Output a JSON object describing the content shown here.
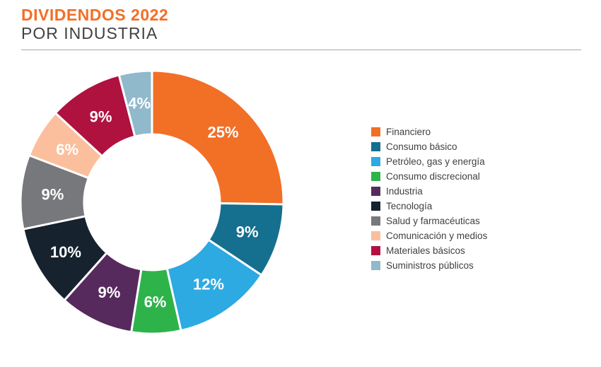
{
  "header": {
    "title": "DIVIDENDOS 2022",
    "subtitle": "POR INDUSTRIA",
    "title_color": "#F26F26",
    "subtitle_color": "#414042"
  },
  "chart_data": {
    "type": "pie",
    "donut": true,
    "start_angle_deg": 0,
    "direction": "clockwise",
    "legend_position": "right",
    "label_color": "#FFFFFF",
    "segments": [
      {
        "label": "Financiero",
        "value": 25,
        "display": "25%",
        "color": "#F26F26"
      },
      {
        "label": "Consumo básico",
        "value": 9,
        "display": "9%",
        "color": "#156F8E"
      },
      {
        "label": "Petróleo, gas y energía",
        "value": 12,
        "display": "12%",
        "color": "#2CAAE1"
      },
      {
        "label": "Consumo discrecional",
        "value": 6,
        "display": "6%",
        "color": "#2EB34B"
      },
      {
        "label": "Industria",
        "value": 9,
        "display": "9%",
        "color": "#572A5E"
      },
      {
        "label": "Tecnología",
        "value": 10,
        "display": "10%",
        "color": "#16222E"
      },
      {
        "label": "Salud y farmacéuticas",
        "value": 9,
        "display": "9%",
        "color": "#77787B"
      },
      {
        "label": "Comunicación y medios",
        "value": 6,
        "display": "6%",
        "color": "#FBBF9D"
      },
      {
        "label": "Materiales básicos",
        "value": 9,
        "display": "9%",
        "color": "#B01240"
      },
      {
        "label": "Suministros públicos",
        "value": 4,
        "display": "4%",
        "color": "#90B9CB"
      }
    ]
  }
}
